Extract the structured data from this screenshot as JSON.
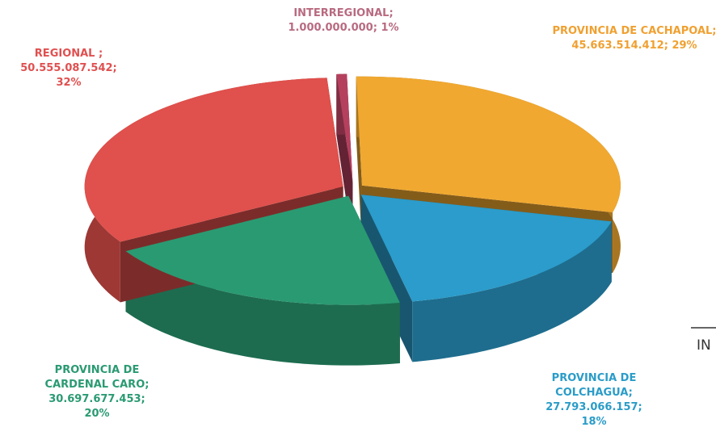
{
  "chart_data": {
    "type": "pie3d",
    "categories": [
      "INTERREGIONAL;",
      "PROVINCIA DE CACHAPOAL;",
      "PROVINCIA DE COLCHAGUA;",
      "PROVINCIA DE CARDENAL CARO;",
      "REGIONAL ;"
    ],
    "values": [
      1000000000,
      45663514412,
      27793066157,
      30697677453,
      50555087542
    ],
    "value_labels": [
      "1.000.000.000;",
      "45.663.514.412;",
      "27.793.066.157;",
      "30.697.677.453;",
      "50.555.087.542;"
    ],
    "percents": [
      1,
      29,
      18,
      20,
      32
    ],
    "percent_labels": [
      "1%",
      "29%",
      "18%",
      "20%",
      "32%"
    ],
    "colors": [
      "#b5405e",
      "#f0a830",
      "#2b9ccb",
      "#2a9a72",
      "#e0504c"
    ],
    "label_colors": [
      "#b86a80",
      "#f0a030",
      "#2a9cc8",
      "#2a9a72",
      "#e05050"
    ],
    "annotations": [
      "IN"
    ]
  }
}
